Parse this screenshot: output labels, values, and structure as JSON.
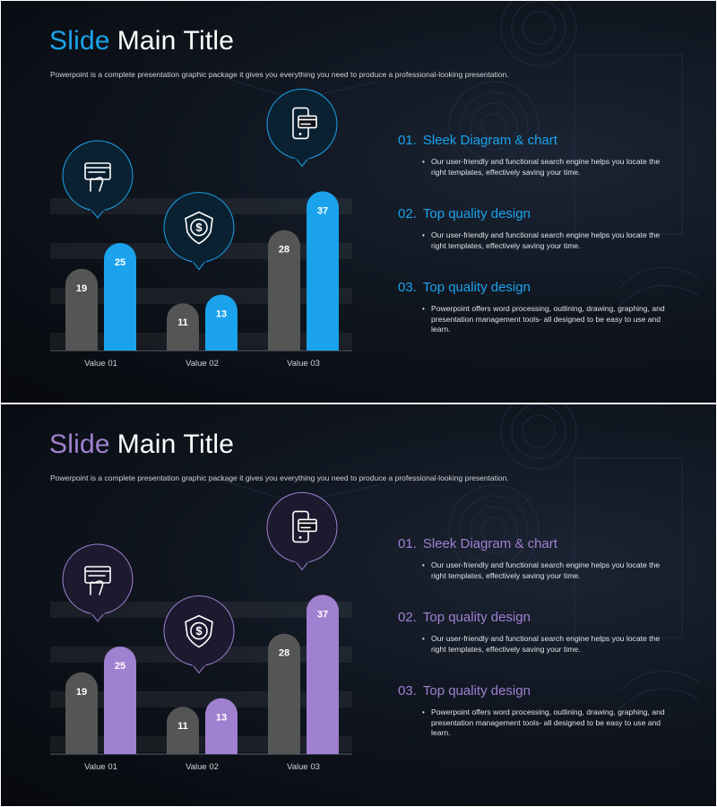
{
  "slides": [
    {
      "accent": "#1aa3ec",
      "circle_fill": "#0a2131",
      "title": {
        "accent_word": "Slide",
        "rest": "Main Title"
      },
      "subtitle": "Powerpoint is a complete presentation graphic package it gives you everything you need to produce a professional-looking presentation.",
      "items": [
        {
          "number": "01.",
          "title": "Sleek Diagram & chart",
          "text": "Our user-friendly and functional search engine helps you locate the right templates, effectively saving your time."
        },
        {
          "number": "02.",
          "title": "Top quality design",
          "text": "Our user-friendly and functional search engine helps you locate the right templates, effectively saving your time."
        },
        {
          "number": "03.",
          "title": "Top quality design",
          "text": "Powerpoint offers word processing, outlining, drawing, graphing, and presentation management tools- all designed to be easy to use and learn."
        }
      ]
    },
    {
      "accent": "#a080d0",
      "circle_fill": "#1b1a2e",
      "title": {
        "accent_word": "Slide",
        "rest": "Main Title"
      },
      "subtitle": "Powerpoint is a complete presentation graphic package it gives you everything you need to produce a professional-looking presentation.",
      "items": [
        {
          "number": "01.",
          "title": "Sleek Diagram & chart",
          "text": "Our user-friendly and functional search engine helps you locate the right templates, effectively saving your time."
        },
        {
          "number": "02.",
          "title": "Top quality design",
          "text": "Our user-friendly and functional search engine helps you locate the right templates, effectively saving your time."
        },
        {
          "number": "03.",
          "title": "Top quality design",
          "text": "Powerpoint offers word processing, outlining, drawing, graphing, and presentation management tools- all designed to be easy to use and learn."
        }
      ]
    }
  ],
  "chart_data": [
    {
      "type": "bar",
      "categories": [
        "Value 01",
        "Value 02",
        "Value 03"
      ],
      "series": [
        {
          "values": [
            19,
            11,
            28
          ],
          "color": "#555555"
        },
        {
          "values": [
            25,
            13,
            37
          ],
          "color": "#1aa3ec"
        }
      ],
      "icons": [
        "card-hand-icon",
        "shield-dollar-icon",
        "phone-card-icon"
      ]
    },
    {
      "type": "bar",
      "categories": [
        "Value 01",
        "Value 02",
        "Value 03"
      ],
      "series": [
        {
          "values": [
            19,
            11,
            28
          ],
          "color": "#555555"
        },
        {
          "values": [
            25,
            13,
            37
          ],
          "color": "#a080d0"
        }
      ],
      "icons": [
        "card-hand-icon",
        "shield-dollar-icon",
        "phone-card-icon"
      ]
    }
  ]
}
